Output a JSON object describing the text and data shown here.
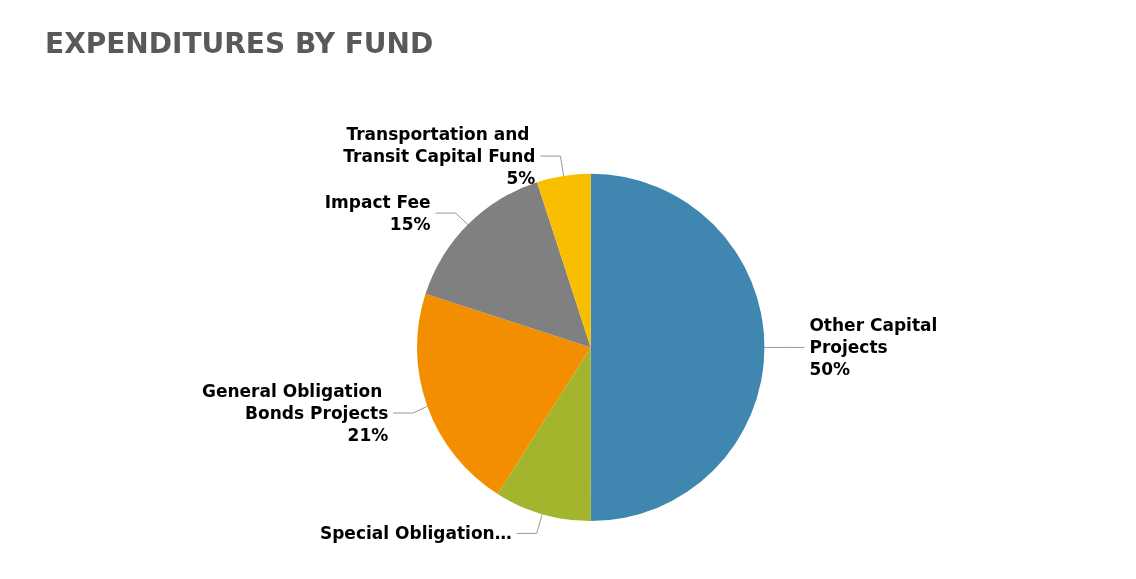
{
  "chart_data": {
    "type": "pie",
    "title": "EXPENDITURES BY FUND",
    "categories": [
      "Other Capital Projects",
      "Special Obligation…",
      "General Obligation Bonds Projects",
      "Impact Fee",
      "Transportation and Transit Capital Fund"
    ],
    "values": [
      50,
      9,
      21,
      15,
      5
    ],
    "colors": [
      "#3f87b0",
      "#a3b52c",
      "#f28e00",
      "#808080",
      "#f9be00"
    ],
    "value_labels": [
      "50%",
      null,
      "21%",
      "15%",
      "5%"
    ],
    "legend": false
  }
}
